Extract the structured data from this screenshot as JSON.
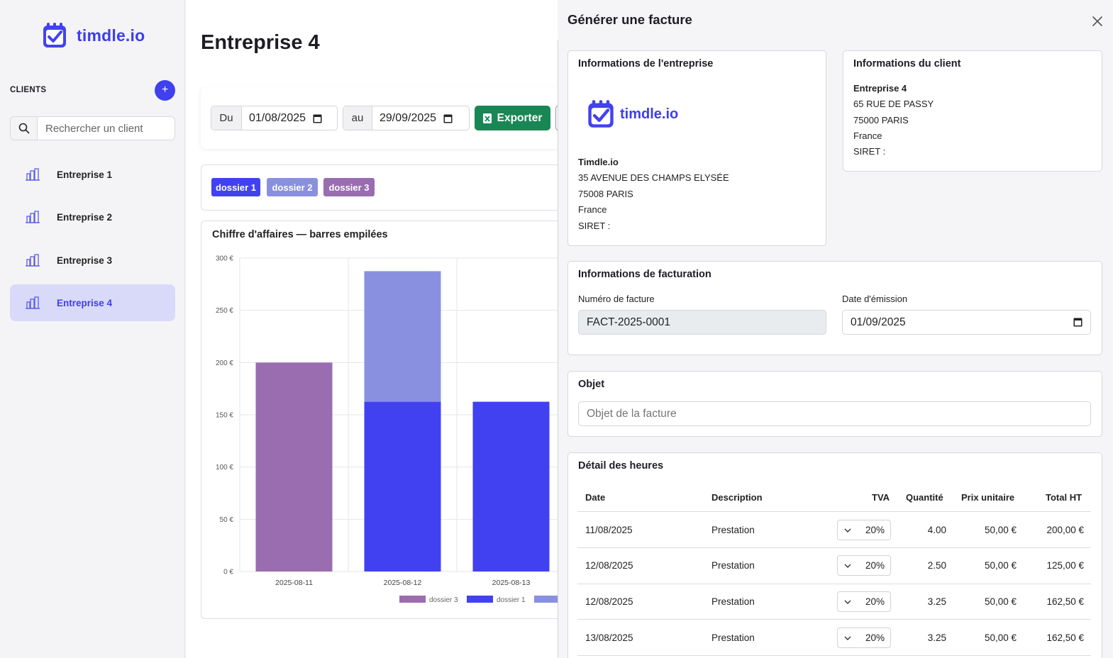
{
  "app": {
    "brand": "timdle.io"
  },
  "sidebar": {
    "clients_label": "CLIENTS",
    "add_label": "+",
    "search_placeholder": "Rechercher un client",
    "items": [
      {
        "label": "Entreprise 1",
        "active": false
      },
      {
        "label": "Entreprise 2",
        "active": false
      },
      {
        "label": "Entreprise 3",
        "active": false
      },
      {
        "label": "Entreprise 4",
        "active": true
      }
    ]
  },
  "main": {
    "title": "Entreprise 4",
    "filter": {
      "from_prefix": "Du",
      "from_value": "01/08/2025",
      "to_prefix": "au",
      "to_value": "29/09/2025",
      "export_label": "Exporter"
    },
    "tags": [
      {
        "label": "dossier 1",
        "color": "#4141f2"
      },
      {
        "label": "dossier 2",
        "color": "#8a90e0"
      },
      {
        "label": "dossier 3",
        "color": "#9a6cb0"
      }
    ]
  },
  "chart_data": {
    "type": "bar",
    "stacked": true,
    "title": "Chiffre d'affaires — barres empilées",
    "categories": [
      "2025-08-11",
      "2025-08-12",
      "2025-08-13"
    ],
    "series": [
      {
        "name": "dossier 3",
        "color": "#9a6cb0",
        "values": [
          200,
          0,
          0
        ]
      },
      {
        "name": "dossier 1",
        "color": "#4141f2",
        "values": [
          0,
          162.5,
          162.5
        ]
      },
      {
        "name": "dossier 2",
        "color": "#8a90e0",
        "values": [
          0,
          125,
          0
        ]
      }
    ],
    "ylim": [
      0,
      300
    ],
    "yticks": [
      "0 €",
      "50 €",
      "100 €",
      "150 €",
      "200 €",
      "250 €",
      "300 €"
    ],
    "grid": true,
    "legend": "bottom"
  },
  "panel": {
    "title": "Générer une facture",
    "company": {
      "title": "Informations de l'entreprise",
      "logo_text": "timdle.io",
      "name": "Timdle.io",
      "address1": "35 AVENUE DES CHAMPS ELYSÉE",
      "address2": "75008 PARIS",
      "country": "France",
      "siret": "SIRET :"
    },
    "client": {
      "title": "Informations du client",
      "name": "Entreprise 4",
      "address1": "65 RUE DE PASSY",
      "address2": "75000 PARIS",
      "country": "France",
      "siret": "SIRET :"
    },
    "billing": {
      "title": "Informations de facturation",
      "number_label": "Numéro de facture",
      "number_value": "FACT-2025-0001",
      "date_label": "Date d'émission",
      "date_value": "01/09/2025"
    },
    "object": {
      "title": "Objet",
      "placeholder": "Objet de la facture"
    },
    "hours": {
      "title": "Détail des heures",
      "columns": [
        "Date",
        "Description",
        "TVA",
        "Quantité",
        "Prix unitaire",
        "Total HT"
      ],
      "rows": [
        {
          "date": "11/08/2025",
          "description": "Prestation",
          "tva": "20%",
          "qty": "4.00",
          "unit": "50,00 €",
          "total": "200,00 €"
        },
        {
          "date": "12/08/2025",
          "description": "Prestation",
          "tva": "20%",
          "qty": "2.50",
          "unit": "50,00 €",
          "total": "125,00 €"
        },
        {
          "date": "12/08/2025",
          "description": "Prestation",
          "tva": "20%",
          "qty": "3.25",
          "unit": "50,00 €",
          "total": "162,50 €"
        },
        {
          "date": "13/08/2025",
          "description": "Prestation",
          "tva": "20%",
          "qty": "3.25",
          "unit": "50,00 €",
          "total": "162,50 €"
        }
      ]
    }
  }
}
